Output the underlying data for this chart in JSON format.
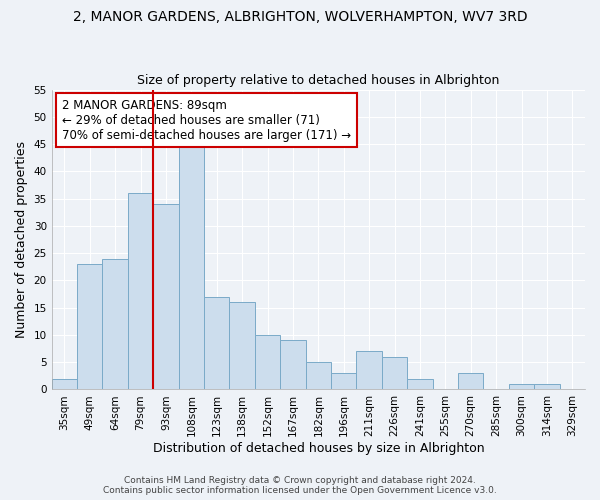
{
  "title": "2, MANOR GARDENS, ALBRIGHTON, WOLVERHAMPTON, WV7 3RD",
  "subtitle": "Size of property relative to detached houses in Albrighton",
  "xlabel": "Distribution of detached houses by size in Albrighton",
  "ylabel": "Number of detached properties",
  "bar_labels": [
    "35sqm",
    "49sqm",
    "64sqm",
    "79sqm",
    "93sqm",
    "108sqm",
    "123sqm",
    "138sqm",
    "152sqm",
    "167sqm",
    "182sqm",
    "196sqm",
    "211sqm",
    "226sqm",
    "241sqm",
    "255sqm",
    "270sqm",
    "285sqm",
    "300sqm",
    "314sqm",
    "329sqm"
  ],
  "bar_values": [
    2,
    23,
    24,
    36,
    34,
    46,
    17,
    16,
    10,
    9,
    5,
    3,
    7,
    6,
    2,
    0,
    3,
    0,
    1,
    1,
    0
  ],
  "bar_color": "#ccdded",
  "bar_edge_color": "#7aaac8",
  "vline_color": "#cc0000",
  "annotation_text": "2 MANOR GARDENS: 89sqm\n← 29% of detached houses are smaller (71)\n70% of semi-detached houses are larger (171) →",
  "annotation_box_color": "#ffffff",
  "annotation_box_edge_color": "#cc0000",
  "ylim": [
    0,
    55
  ],
  "yticks": [
    0,
    5,
    10,
    15,
    20,
    25,
    30,
    35,
    40,
    45,
    50,
    55
  ],
  "footer_text": "Contains HM Land Registry data © Crown copyright and database right 2024.\nContains public sector information licensed under the Open Government Licence v3.0.",
  "background_color": "#eef2f7",
  "grid_color": "#ffffff",
  "title_fontsize": 10,
  "subtitle_fontsize": 9,
  "axis_label_fontsize": 9,
  "tick_fontsize": 7.5,
  "annotation_fontsize": 8.5,
  "footer_fontsize": 6.5
}
